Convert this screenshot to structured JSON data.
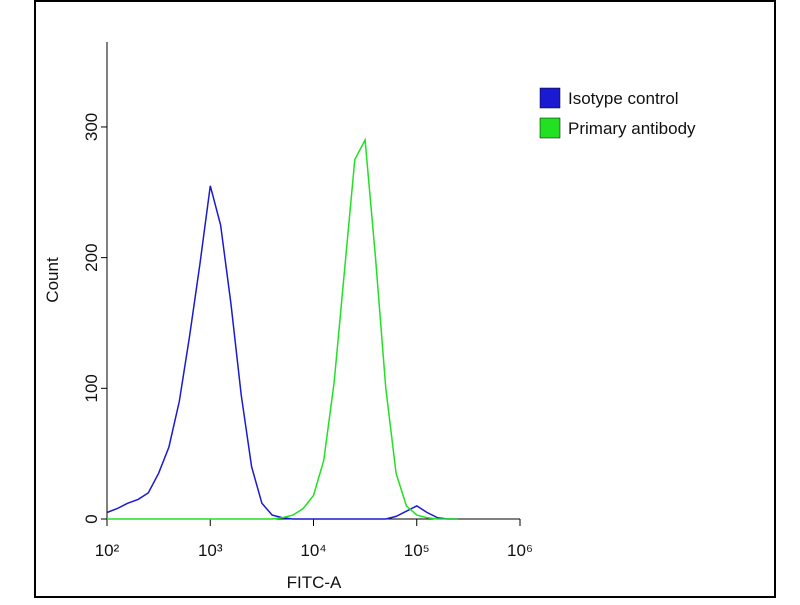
{
  "chart_data": {
    "type": "line",
    "xlabel": "FITC-A",
    "ylabel": "Count",
    "xscale": "log",
    "xlim": [
      100,
      1000000
    ],
    "xticks": [
      {
        "value": 100,
        "label": "10²"
      },
      {
        "value": 1000,
        "label": "10³"
      },
      {
        "value": 10000,
        "label": "10⁴"
      },
      {
        "value": 100000,
        "label": "10⁵"
      },
      {
        "value": 1000000,
        "label": "10⁶"
      }
    ],
    "ylim": [
      0,
      365
    ],
    "yticks": [
      0,
      100,
      200,
      300
    ],
    "legend": "upper right",
    "x": [
      100,
      126,
      158,
      200,
      251,
      316,
      398,
      501,
      631,
      794,
      1000,
      1259,
      1585,
      1995,
      2512,
      3162,
      3981,
      5012,
      6310,
      7943,
      10000,
      12589,
      15849,
      19953,
      25119,
      31623,
      39811,
      50119,
      63096,
      79433,
      100000,
      125893,
      158489,
      199526,
      251189
    ],
    "series": [
      {
        "name": "Isotype control",
        "color": "#1a1ad0",
        "values": [
          5,
          8,
          12,
          15,
          20,
          35,
          55,
          90,
          140,
          195,
          255,
          225,
          165,
          95,
          40,
          12,
          3,
          1,
          0,
          0,
          0,
          0,
          0,
          0,
          0,
          0,
          0,
          0,
          2,
          6,
          10,
          5,
          1,
          0,
          0
        ]
      },
      {
        "name": "Primary antibody",
        "color": "#22e022",
        "values": [
          0,
          0,
          0,
          0,
          0,
          0,
          0,
          0,
          0,
          0,
          0,
          0,
          0,
          0,
          0,
          0,
          0,
          1,
          3,
          8,
          18,
          45,
          105,
          190,
          275,
          290,
          200,
          100,
          35,
          10,
          3,
          1,
          0,
          0,
          0
        ]
      }
    ]
  }
}
